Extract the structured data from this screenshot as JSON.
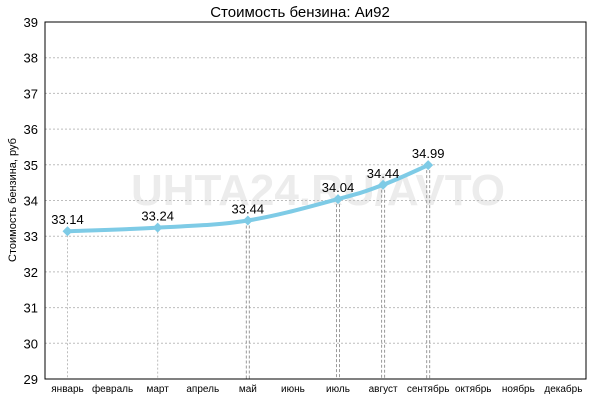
{
  "chart_data": {
    "type": "line",
    "title": "Стоимость бензина: Аи92",
    "ylabel": "Стоимость бензина, руб",
    "xlabel": "",
    "categories": [
      "январь",
      "февраль",
      "март",
      "апрель",
      "май",
      "июнь",
      "июль",
      "август",
      "сентябрь",
      "октябрь",
      "ноябрь",
      "декабрь"
    ],
    "series": [
      {
        "values": [
          33.14,
          null,
          33.24,
          null,
          33.44,
          null,
          34.04,
          34.44,
          34.99,
          null,
          null,
          null
        ],
        "color": "#7ecbe6"
      }
    ],
    "ylim": [
      29,
      39
    ],
    "yticks": [
      29,
      30,
      31,
      32,
      33,
      34,
      35,
      36,
      37,
      38,
      39
    ],
    "grid": true,
    "watermark": "UHTA24.RU/AVTO"
  }
}
